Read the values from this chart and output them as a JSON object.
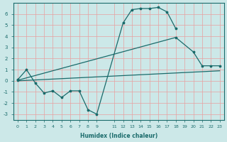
{
  "xlabel": "Humidex (Indice chaleur)",
  "bg_color": "#cce8e8",
  "grid_color": "#e8a0a0",
  "line_color": "#1a6b6b",
  "xlim": [
    -0.5,
    23.5
  ],
  "ylim": [
    -3.5,
    7.0
  ],
  "yticks": [
    -3,
    -2,
    -1,
    0,
    1,
    2,
    3,
    4,
    5,
    6
  ],
  "xticks": [
    0,
    1,
    2,
    3,
    4,
    5,
    6,
    7,
    8,
    9,
    11,
    12,
    13,
    14,
    15,
    16,
    17,
    18,
    19,
    20,
    21,
    22,
    23
  ],
  "xticklabels": [
    "0",
    "1",
    "2",
    "3",
    "4",
    "5",
    "6",
    "7",
    "8",
    "9",
    "11",
    "12",
    "13",
    "14",
    "15",
    "16",
    "17",
    "18",
    "19",
    "20",
    "21",
    "22",
    "23"
  ],
  "line1_x": [
    0,
    1,
    2,
    3,
    4,
    5,
    6,
    7,
    8,
    9,
    12,
    13,
    14,
    15,
    16,
    17,
    18
  ],
  "line1_y": [
    0.1,
    1.0,
    -0.2,
    -1.1,
    -0.9,
    -1.5,
    -0.9,
    -0.9,
    -2.6,
    -3.0,
    5.2,
    6.4,
    6.5,
    6.5,
    6.6,
    6.2,
    4.7
  ],
  "line2_x": [
    0,
    18,
    20,
    21,
    22,
    23
  ],
  "line2_y": [
    0.05,
    3.9,
    2.6,
    1.35,
    1.35,
    1.35
  ],
  "line3_x": [
    0,
    23
  ],
  "line3_y": [
    0.0,
    0.9
  ]
}
